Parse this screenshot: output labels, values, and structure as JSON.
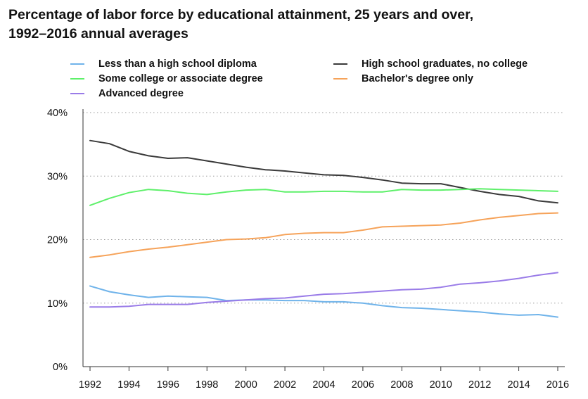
{
  "title_line1": "Percentage of labor force by educational attainment, 25 years and over,",
  "title_line2": "1992–2016 annual averages",
  "chart_data": {
    "type": "line",
    "x": [
      1992,
      1993,
      1994,
      1995,
      1996,
      1997,
      1998,
      1999,
      2000,
      2001,
      2002,
      2003,
      2004,
      2005,
      2006,
      2007,
      2008,
      2009,
      2010,
      2011,
      2012,
      2013,
      2014,
      2015,
      2016
    ],
    "xticks": [
      "1992",
      "1994",
      "1996",
      "1998",
      "2000",
      "2002",
      "2004",
      "2006",
      "2008",
      "2010",
      "2012",
      "2014",
      "2016"
    ],
    "yticks": [
      "0%",
      "10%",
      "20%",
      "30%",
      "40%"
    ],
    "ylim": [
      0,
      40
    ],
    "xlim": [
      1992,
      2016
    ],
    "grid": "horizontal dotted",
    "legend_position": "top",
    "series": [
      {
        "name": "Less than a high school diploma",
        "color": "#6fb3ea",
        "values": [
          12.7,
          11.8,
          11.3,
          10.9,
          11.1,
          11.0,
          10.9,
          10.4,
          10.5,
          10.5,
          10.4,
          10.4,
          10.2,
          10.2,
          10.0,
          9.6,
          9.3,
          9.2,
          9.0,
          8.8,
          8.6,
          8.3,
          8.1,
          8.2,
          7.8
        ]
      },
      {
        "name": "High school graduates, no college",
        "color": "#3a3a3a",
        "values": [
          35.6,
          35.1,
          33.9,
          33.2,
          32.8,
          32.9,
          32.4,
          31.9,
          31.4,
          31.0,
          30.8,
          30.5,
          30.2,
          30.1,
          29.8,
          29.4,
          28.9,
          28.8,
          28.8,
          28.2,
          27.6,
          27.1,
          26.8,
          26.1,
          25.8
        ]
      },
      {
        "name": "Some college or associate degree",
        "color": "#5ef06a",
        "values": [
          25.4,
          26.5,
          27.4,
          27.9,
          27.7,
          27.3,
          27.1,
          27.5,
          27.8,
          27.9,
          27.5,
          27.5,
          27.6,
          27.6,
          27.5,
          27.5,
          27.9,
          27.8,
          27.8,
          27.9,
          28.0,
          27.9,
          27.8,
          27.7,
          27.6
        ]
      },
      {
        "name": "Bachelor's degree only",
        "color": "#f6a35a",
        "values": [
          17.2,
          17.6,
          18.1,
          18.5,
          18.8,
          19.2,
          19.6,
          20.0,
          20.1,
          20.3,
          20.8,
          21.0,
          21.1,
          21.1,
          21.5,
          22.0,
          22.1,
          22.2,
          22.3,
          22.6,
          23.1,
          23.5,
          23.8,
          24.1,
          24.2
        ]
      },
      {
        "name": "Advanced degree",
        "color": "#9a7ce8",
        "values": [
          9.4,
          9.4,
          9.5,
          9.8,
          9.8,
          9.8,
          10.1,
          10.3,
          10.5,
          10.7,
          10.8,
          11.1,
          11.4,
          11.5,
          11.7,
          11.9,
          12.1,
          12.2,
          12.5,
          13.0,
          13.2,
          13.5,
          13.9,
          14.4,
          14.8
        ]
      }
    ]
  }
}
